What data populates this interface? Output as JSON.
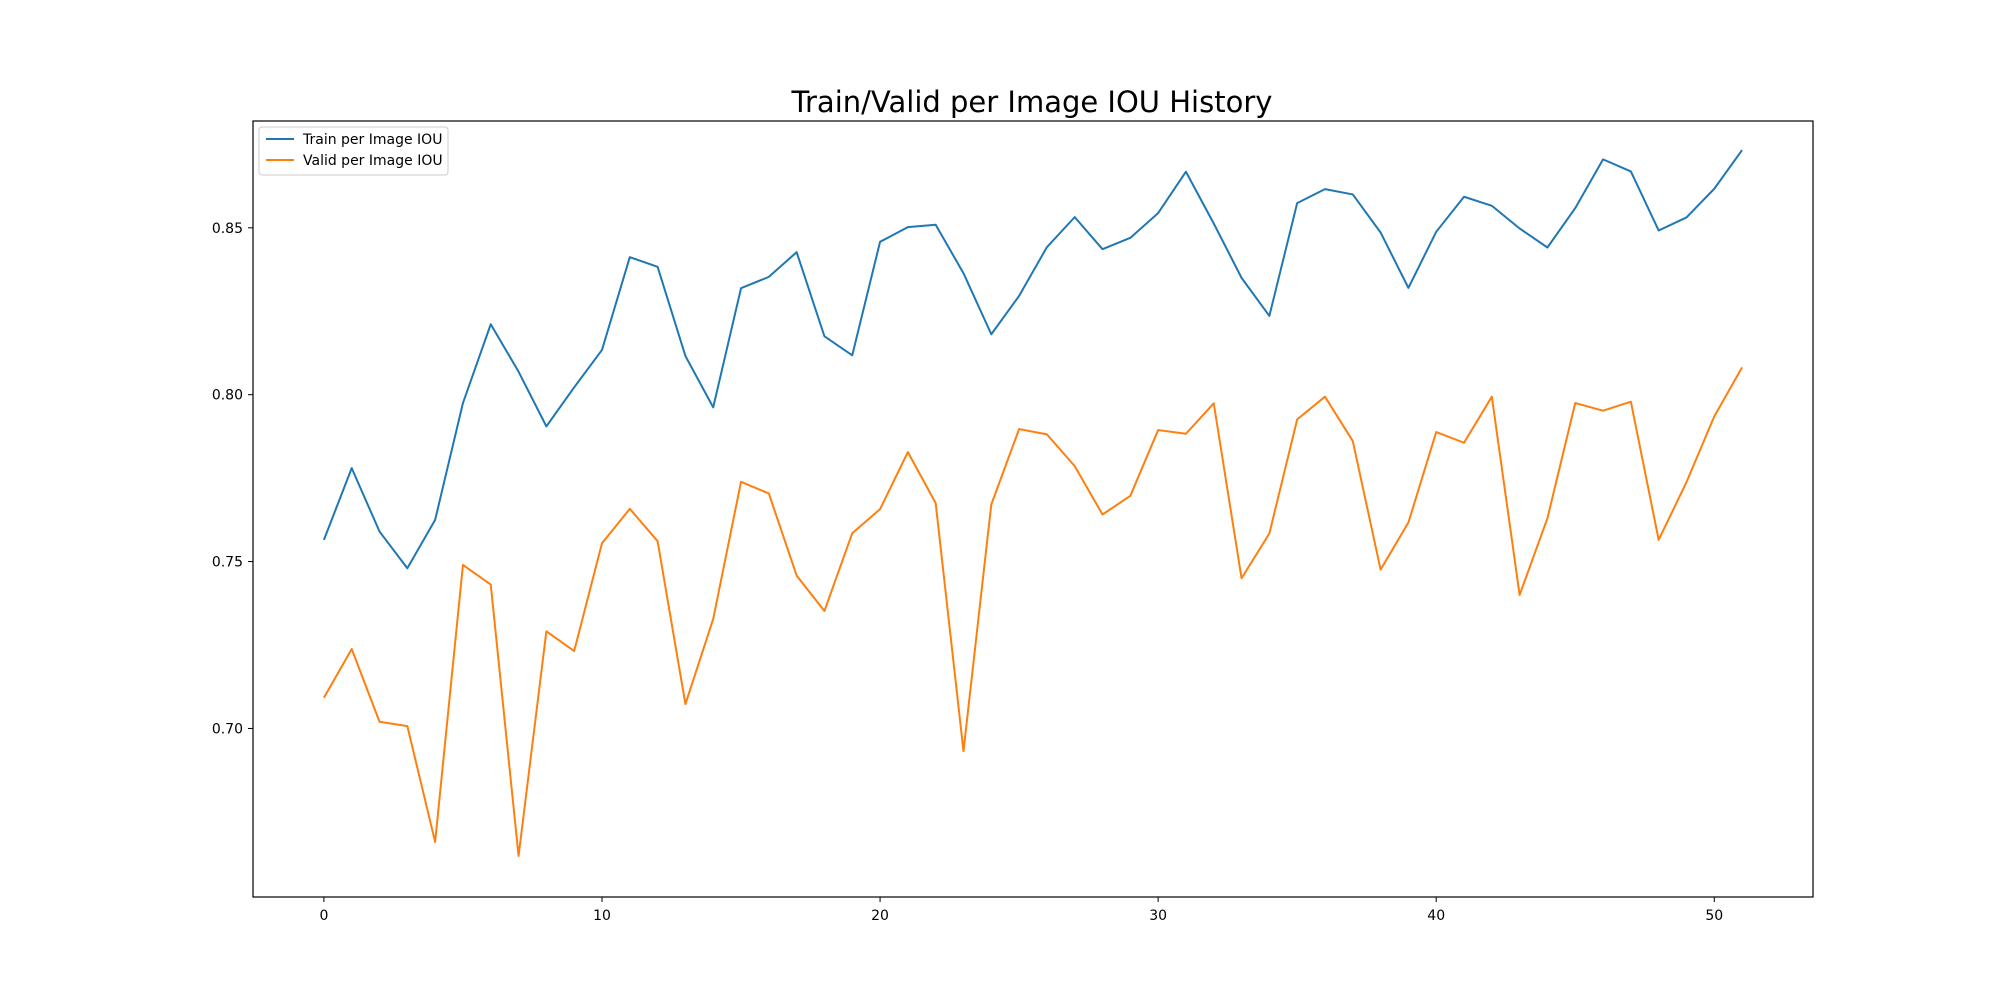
{
  "chart_data": {
    "type": "line",
    "title": "Train/Valid per Image IOU History",
    "xlabel": "",
    "ylabel": "",
    "xlim": [
      -2.55,
      53.55
    ],
    "ylim": [
      0.6495,
      0.882
    ],
    "xticks": [
      0,
      10,
      20,
      30,
      40,
      50
    ],
    "xtick_labels": [
      "0",
      "10",
      "20",
      "30",
      "40",
      "50"
    ],
    "yticks": [
      0.7,
      0.75,
      0.8,
      0.85
    ],
    "ytick_labels": [
      "0.70",
      "0.75",
      "0.80",
      "0.85"
    ],
    "grid": false,
    "legend_position": "upper-left",
    "x": [
      0,
      1,
      2,
      3,
      4,
      5,
      6,
      7,
      8,
      9,
      10,
      11,
      12,
      13,
      14,
      15,
      16,
      17,
      18,
      19,
      20,
      21,
      22,
      23,
      24,
      25,
      26,
      27,
      28,
      29,
      30,
      31,
      32,
      33,
      34,
      35,
      36,
      37,
      38,
      39,
      40,
      41,
      42,
      43,
      44,
      45,
      46,
      47,
      48,
      49,
      50,
      51
    ],
    "series": [
      {
        "name": "Train per Image IOU",
        "color": "#1f77b4",
        "values": [
          0.7565,
          0.778,
          0.759,
          0.748,
          0.7625,
          0.7975,
          0.8211,
          0.8069,
          0.7905,
          0.8022,
          0.8134,
          0.8412,
          0.8383,
          0.8116,
          0.7962,
          0.8319,
          0.8353,
          0.8427,
          0.8175,
          0.8118,
          0.8458,
          0.8502,
          0.8509,
          0.8364,
          0.8181,
          0.8296,
          0.8442,
          0.8532,
          0.8436,
          0.847,
          0.8544,
          0.8668,
          0.8513,
          0.835,
          0.8236,
          0.8574,
          0.8616,
          0.86,
          0.8486,
          0.832,
          0.8488,
          0.8593,
          0.8566,
          0.8498,
          0.8441,
          0.8559,
          0.8705,
          0.8669,
          0.8492,
          0.8531,
          0.8617,
          0.8733
        ]
      },
      {
        "name": "Valid per Image IOU",
        "color": "#ff7f0e",
        "values": [
          0.7092,
          0.7238,
          0.702,
          0.7007,
          0.666,
          0.749,
          0.7431,
          0.6618,
          0.7291,
          0.7232,
          0.7555,
          0.7658,
          0.7561,
          0.7073,
          0.7328,
          0.7739,
          0.7704,
          0.7458,
          0.7352,
          0.7585,
          0.7657,
          0.7828,
          0.7675,
          0.6932,
          0.7671,
          0.7897,
          0.7881,
          0.7786,
          0.7641,
          0.7697,
          0.7894,
          0.7883,
          0.7974,
          0.745,
          0.7584,
          0.7926,
          0.7994,
          0.7861,
          0.7476,
          0.7617,
          0.7888,
          0.7856,
          0.7994,
          0.74,
          0.763,
          0.7975,
          0.7952,
          0.7979,
          0.7565,
          0.7738,
          0.7935,
          0.8082
        ]
      }
    ]
  }
}
